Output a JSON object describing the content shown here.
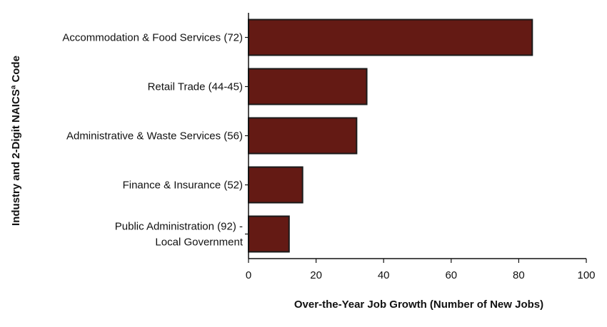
{
  "chart_data": {
    "type": "bar",
    "orientation": "horizontal",
    "categories": [
      [
        "Accommodation & Food Services (72)"
      ],
      [
        "Retail Trade (44-45)"
      ],
      [
        "Administrative & Waste Services (56)"
      ],
      [
        "Finance & Insurance (52)"
      ],
      [
        "Public Administration (92) -",
        "Local Government"
      ]
    ],
    "values": [
      84,
      35,
      32,
      16,
      12
    ],
    "xlim": [
      0,
      100
    ],
    "xticks": [
      0,
      20,
      40,
      60,
      80,
      100
    ],
    "xlabel": "Over-the-Year Job Growth (Number of New Jobs)",
    "ylabel": "Industry and 2-Digit NAICSª Code",
    "grid": false,
    "legend": null,
    "colors": {
      "bar_fill": "#641a14",
      "bar_stroke": "#1a1a1a",
      "axis": "#111111"
    }
  }
}
